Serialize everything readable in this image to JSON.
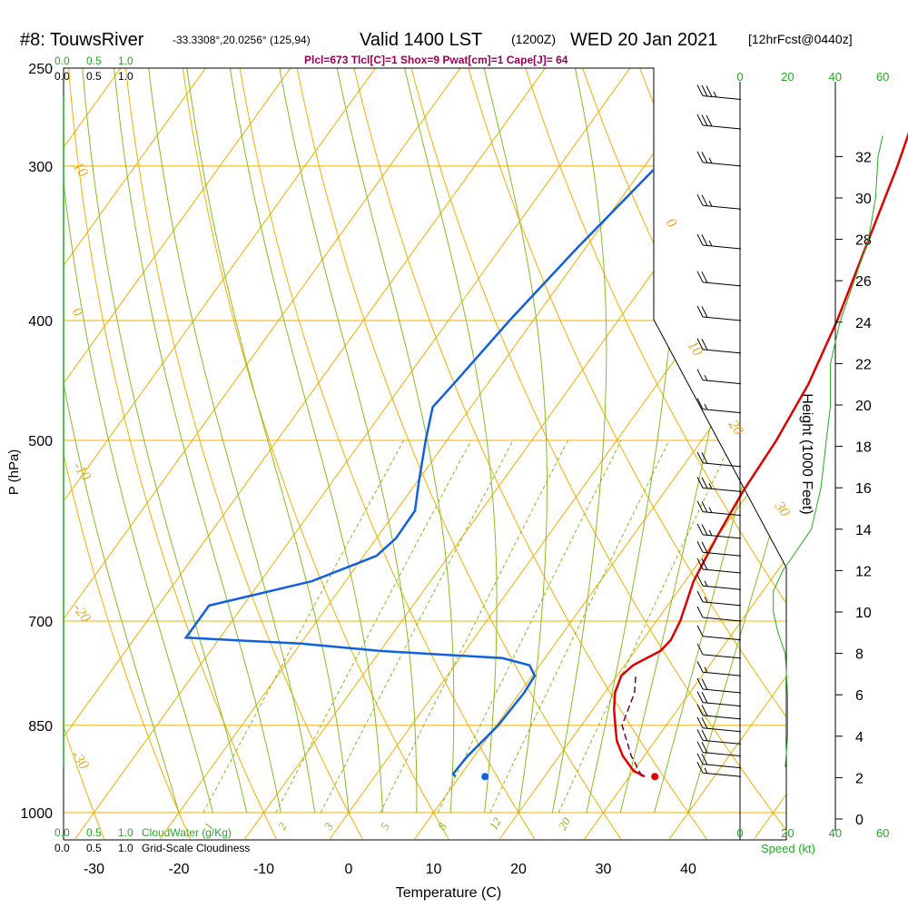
{
  "header": {
    "title": "#8: TouwsRiver",
    "coords": "-33.3308°,20.0256° (125,94)",
    "valid_lst": "Valid 1400 LST",
    "valid_z": "(1200Z)",
    "date": "WED 20 Jan 2021",
    "forecast": "[12hrFcst@0440z]",
    "indices": "Plcl=673 Tlcl[C]=1 Shox=9 Pwat[cm]=1 Cape[J]= 64"
  },
  "cloud_scales": {
    "cloudwater_ticks": [
      "0.0",
      "0.5",
      "1.0"
    ],
    "cloudiness_ticks": [
      "0.0",
      "0.5",
      "1.0"
    ],
    "cloudwater_label": "CloudWater (g/Kg)",
    "cloudiness_label": "Grid-Scale Cloudiness"
  },
  "colors": {
    "isotherm": "#f0b000",
    "dry_adiabat": "#f0b000",
    "moist_adiabat": "#88bb22",
    "mixing_ratio": "#88bb22",
    "temperature": "#e00000",
    "dewpoint": "#1060e0",
    "parcel": "#660044",
    "height_profile": "#22aa22"
  },
  "chart_data": {
    "type": "skewt",
    "xlabel": "Temperature (C)",
    "ylabel": "P (hPa)",
    "x_ticks": [
      "-30",
      "-20",
      "-10",
      "0",
      "10",
      "20",
      "30",
      "40"
    ],
    "y_ticks": [
      "250",
      "300",
      "400",
      "500",
      "700",
      "850",
      "1000"
    ],
    "pressure_range_hpa": [
      1000,
      250
    ],
    "temperature_range_c": [
      -33,
      36
    ],
    "dry_adiabat_labels": [
      "10",
      "0",
      "-10",
      "-20",
      "-30",
      "0",
      "10",
      "20",
      "30"
    ],
    "mixing_ratio_labels": [
      "1",
      "2",
      "3",
      "5",
      "8",
      "12",
      "20"
    ],
    "temperature_profile": [
      {
        "p": 935,
        "t": 31.8
      },
      {
        "p": 925,
        "t": 30.0
      },
      {
        "p": 900,
        "t": 27.5
      },
      {
        "p": 875,
        "t": 25.5
      },
      {
        "p": 850,
        "t": 24.0
      },
      {
        "p": 825,
        "t": 22.5
      },
      {
        "p": 800,
        "t": 21.2
      },
      {
        "p": 775,
        "t": 20.5
      },
      {
        "p": 760,
        "t": 21.0
      },
      {
        "p": 740,
        "t": 23.0
      },
      {
        "p": 725,
        "t": 23.3
      },
      {
        "p": 700,
        "t": 22.8
      },
      {
        "p": 650,
        "t": 21.0
      },
      {
        "p": 600,
        "t": 20.0
      },
      {
        "p": 550,
        "t": 19.2
      },
      {
        "p": 500,
        "t": 18.8
      },
      {
        "p": 450,
        "t": 17.8
      },
      {
        "p": 400,
        "t": 15.8
      },
      {
        "p": 350,
        "t": 13.0
      },
      {
        "p": 300,
        "t": 9.8
      },
      {
        "p": 270,
        "t": 7.3
      }
    ],
    "dewpoint_profile": [
      {
        "p": 935,
        "t": 9.5
      },
      {
        "p": 930,
        "t": 9.0
      },
      {
        "p": 900,
        "t": 9.2
      },
      {
        "p": 850,
        "t": 10.2
      },
      {
        "p": 800,
        "t": 10.5
      },
      {
        "p": 775,
        "t": 10.3
      },
      {
        "p": 760,
        "t": 8.8
      },
      {
        "p": 750,
        "t": 5.0
      },
      {
        "p": 740,
        "t": -10.0
      },
      {
        "p": 730,
        "t": -20.0
      },
      {
        "p": 722,
        "t": -34.0
      },
      {
        "p": 680,
        "t": -34.0
      },
      {
        "p": 650,
        "t": -24.0
      },
      {
        "p": 620,
        "t": -18.5
      },
      {
        "p": 600,
        "t": -17.7
      },
      {
        "p": 570,
        "t": -17.8
      },
      {
        "p": 540,
        "t": -19.8
      },
      {
        "p": 500,
        "t": -22.5
      },
      {
        "p": 470,
        "t": -24.5
      },
      {
        "p": 450,
        "t": -24.0
      },
      {
        "p": 400,
        "t": -22.8
      },
      {
        "p": 350,
        "t": -21.0
      },
      {
        "p": 300,
        "t": -18.5
      },
      {
        "p": 270,
        "t": -16.8
      }
    ],
    "parcel_profile": [
      {
        "p": 935,
        "t": 31.5
      },
      {
        "p": 900,
        "t": 28.5
      },
      {
        "p": 850,
        "t": 24.8
      },
      {
        "p": 800,
        "t": 23.5
      },
      {
        "p": 775,
        "t": 22.2
      }
    ],
    "surface_temperature": {
      "p": 935,
      "t": 33.0
    },
    "surface_dewpoint": {
      "p": 935,
      "t": 13.0
    },
    "height_axis": {
      "label": "Height (1000 Feet)",
      "ticks": [
        "0",
        "2",
        "4",
        "6",
        "8",
        "10",
        "12",
        "14",
        "16",
        "18",
        "20",
        "22",
        "24",
        "26",
        "28",
        "30",
        "32"
      ]
    },
    "speed_axis": {
      "label": "Speed (kt)",
      "ticks_a": [
        "0",
        "20",
        "40",
        "60"
      ],
      "ticks_b": [
        "0",
        "20",
        "40"
      ],
      "profile_kt": [
        {
          "h": 2.5,
          "s": 19
        },
        {
          "h": 4,
          "s": 20
        },
        {
          "h": 6,
          "s": 20
        },
        {
          "h": 8,
          "s": 19
        },
        {
          "h": 9,
          "s": 16
        },
        {
          "h": 10,
          "s": 14
        },
        {
          "h": 11,
          "s": 14
        },
        {
          "h": 12,
          "s": 18
        },
        {
          "h": 13,
          "s": 24
        },
        {
          "h": 14,
          "s": 30
        },
        {
          "h": 16,
          "s": 34
        },
        {
          "h": 18,
          "s": 36
        },
        {
          "h": 20,
          "s": 38
        },
        {
          "h": 22,
          "s": 38
        },
        {
          "h": 24,
          "s": 42
        },
        {
          "h": 26,
          "s": 48
        },
        {
          "h": 28,
          "s": 54
        },
        {
          "h": 30,
          "s": 57
        },
        {
          "h": 32,
          "s": 58
        },
        {
          "h": 33,
          "s": 60
        }
      ]
    },
    "wind_barbs": [
      {
        "p": 935,
        "speed_kt": 15
      },
      {
        "p": 920,
        "speed_kt": 20
      },
      {
        "p": 900,
        "speed_kt": 20
      },
      {
        "p": 880,
        "speed_kt": 20
      },
      {
        "p": 860,
        "speed_kt": 20
      },
      {
        "p": 840,
        "speed_kt": 20
      },
      {
        "p": 820,
        "speed_kt": 20
      },
      {
        "p": 800,
        "speed_kt": 20
      },
      {
        "p": 775,
        "speed_kt": 15
      },
      {
        "p": 750,
        "speed_kt": 10
      },
      {
        "p": 725,
        "speed_kt": 10
      },
      {
        "p": 700,
        "speed_kt": 10
      },
      {
        "p": 680,
        "speed_kt": 15
      },
      {
        "p": 660,
        "speed_kt": 15
      },
      {
        "p": 640,
        "speed_kt": 20
      },
      {
        "p": 620,
        "speed_kt": 20
      },
      {
        "p": 600,
        "speed_kt": 25
      },
      {
        "p": 575,
        "speed_kt": 25
      },
      {
        "p": 550,
        "speed_kt": 25
      },
      {
        "p": 525,
        "speed_kt": 20
      },
      {
        "p": 475,
        "speed_kt": 15
      },
      {
        "p": 450,
        "speed_kt": 15
      },
      {
        "p": 425,
        "speed_kt": 20
      },
      {
        "p": 400,
        "speed_kt": 20
      },
      {
        "p": 375,
        "speed_kt": 20
      },
      {
        "p": 350,
        "speed_kt": 25
      },
      {
        "p": 325,
        "speed_kt": 25
      },
      {
        "p": 300,
        "speed_kt": 25
      },
      {
        "p": 280,
        "speed_kt": 30
      },
      {
        "p": 265,
        "speed_kt": 35
      }
    ]
  }
}
